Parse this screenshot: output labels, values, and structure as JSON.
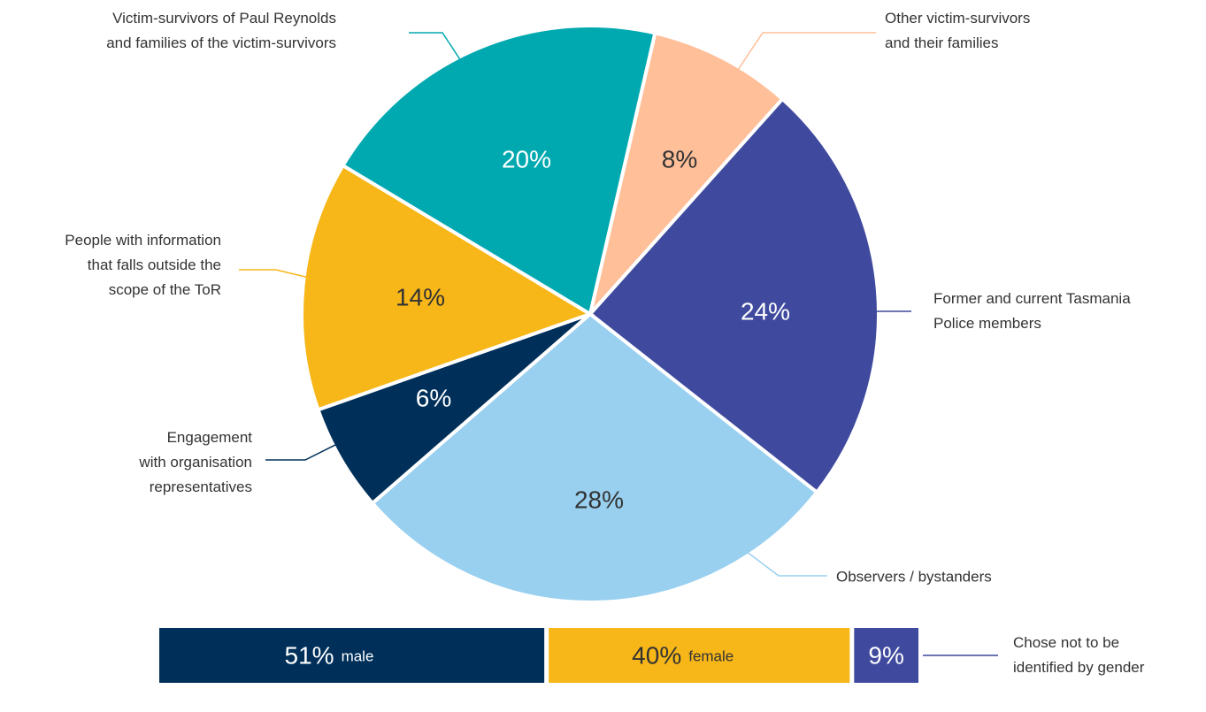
{
  "chart_data": [
    {
      "type": "pie",
      "categories": [
        "Other victim-survivors\nand their families",
        "Former and current Tasmania\nPolice members",
        "Observers / bystanders",
        "Engagement\nwith organisation\nrepresentatives",
        "People with information\nthat falls outside the\nscope of the ToR",
        "Victim-survivors of Paul Reynolds\nand families of the victim-survivors"
      ],
      "values": [
        8,
        24,
        28,
        6,
        14,
        20
      ],
      "value_labels": [
        "8%",
        "24%",
        "28%",
        "6%",
        "14%",
        "20%"
      ],
      "colors": [
        "#ffbf99",
        "#3f4a9e",
        "#99d0f0",
        "#00305a",
        "#f7b719",
        "#00a9b0"
      ]
    },
    {
      "type": "stacked-bar",
      "series": [
        {
          "name": "male",
          "color": "#00305a",
          "values": [
            51
          ],
          "value_labels": [
            "51%"
          ]
        },
        {
          "name": "female",
          "color": "#f7b719",
          "values": [
            40
          ],
          "value_labels": [
            "40%"
          ]
        },
        {
          "name": "Chose not to be\nidentified by gender",
          "color": "#3f4a9e",
          "values": [
            9
          ],
          "value_labels": [
            "9%"
          ]
        }
      ]
    }
  ]
}
